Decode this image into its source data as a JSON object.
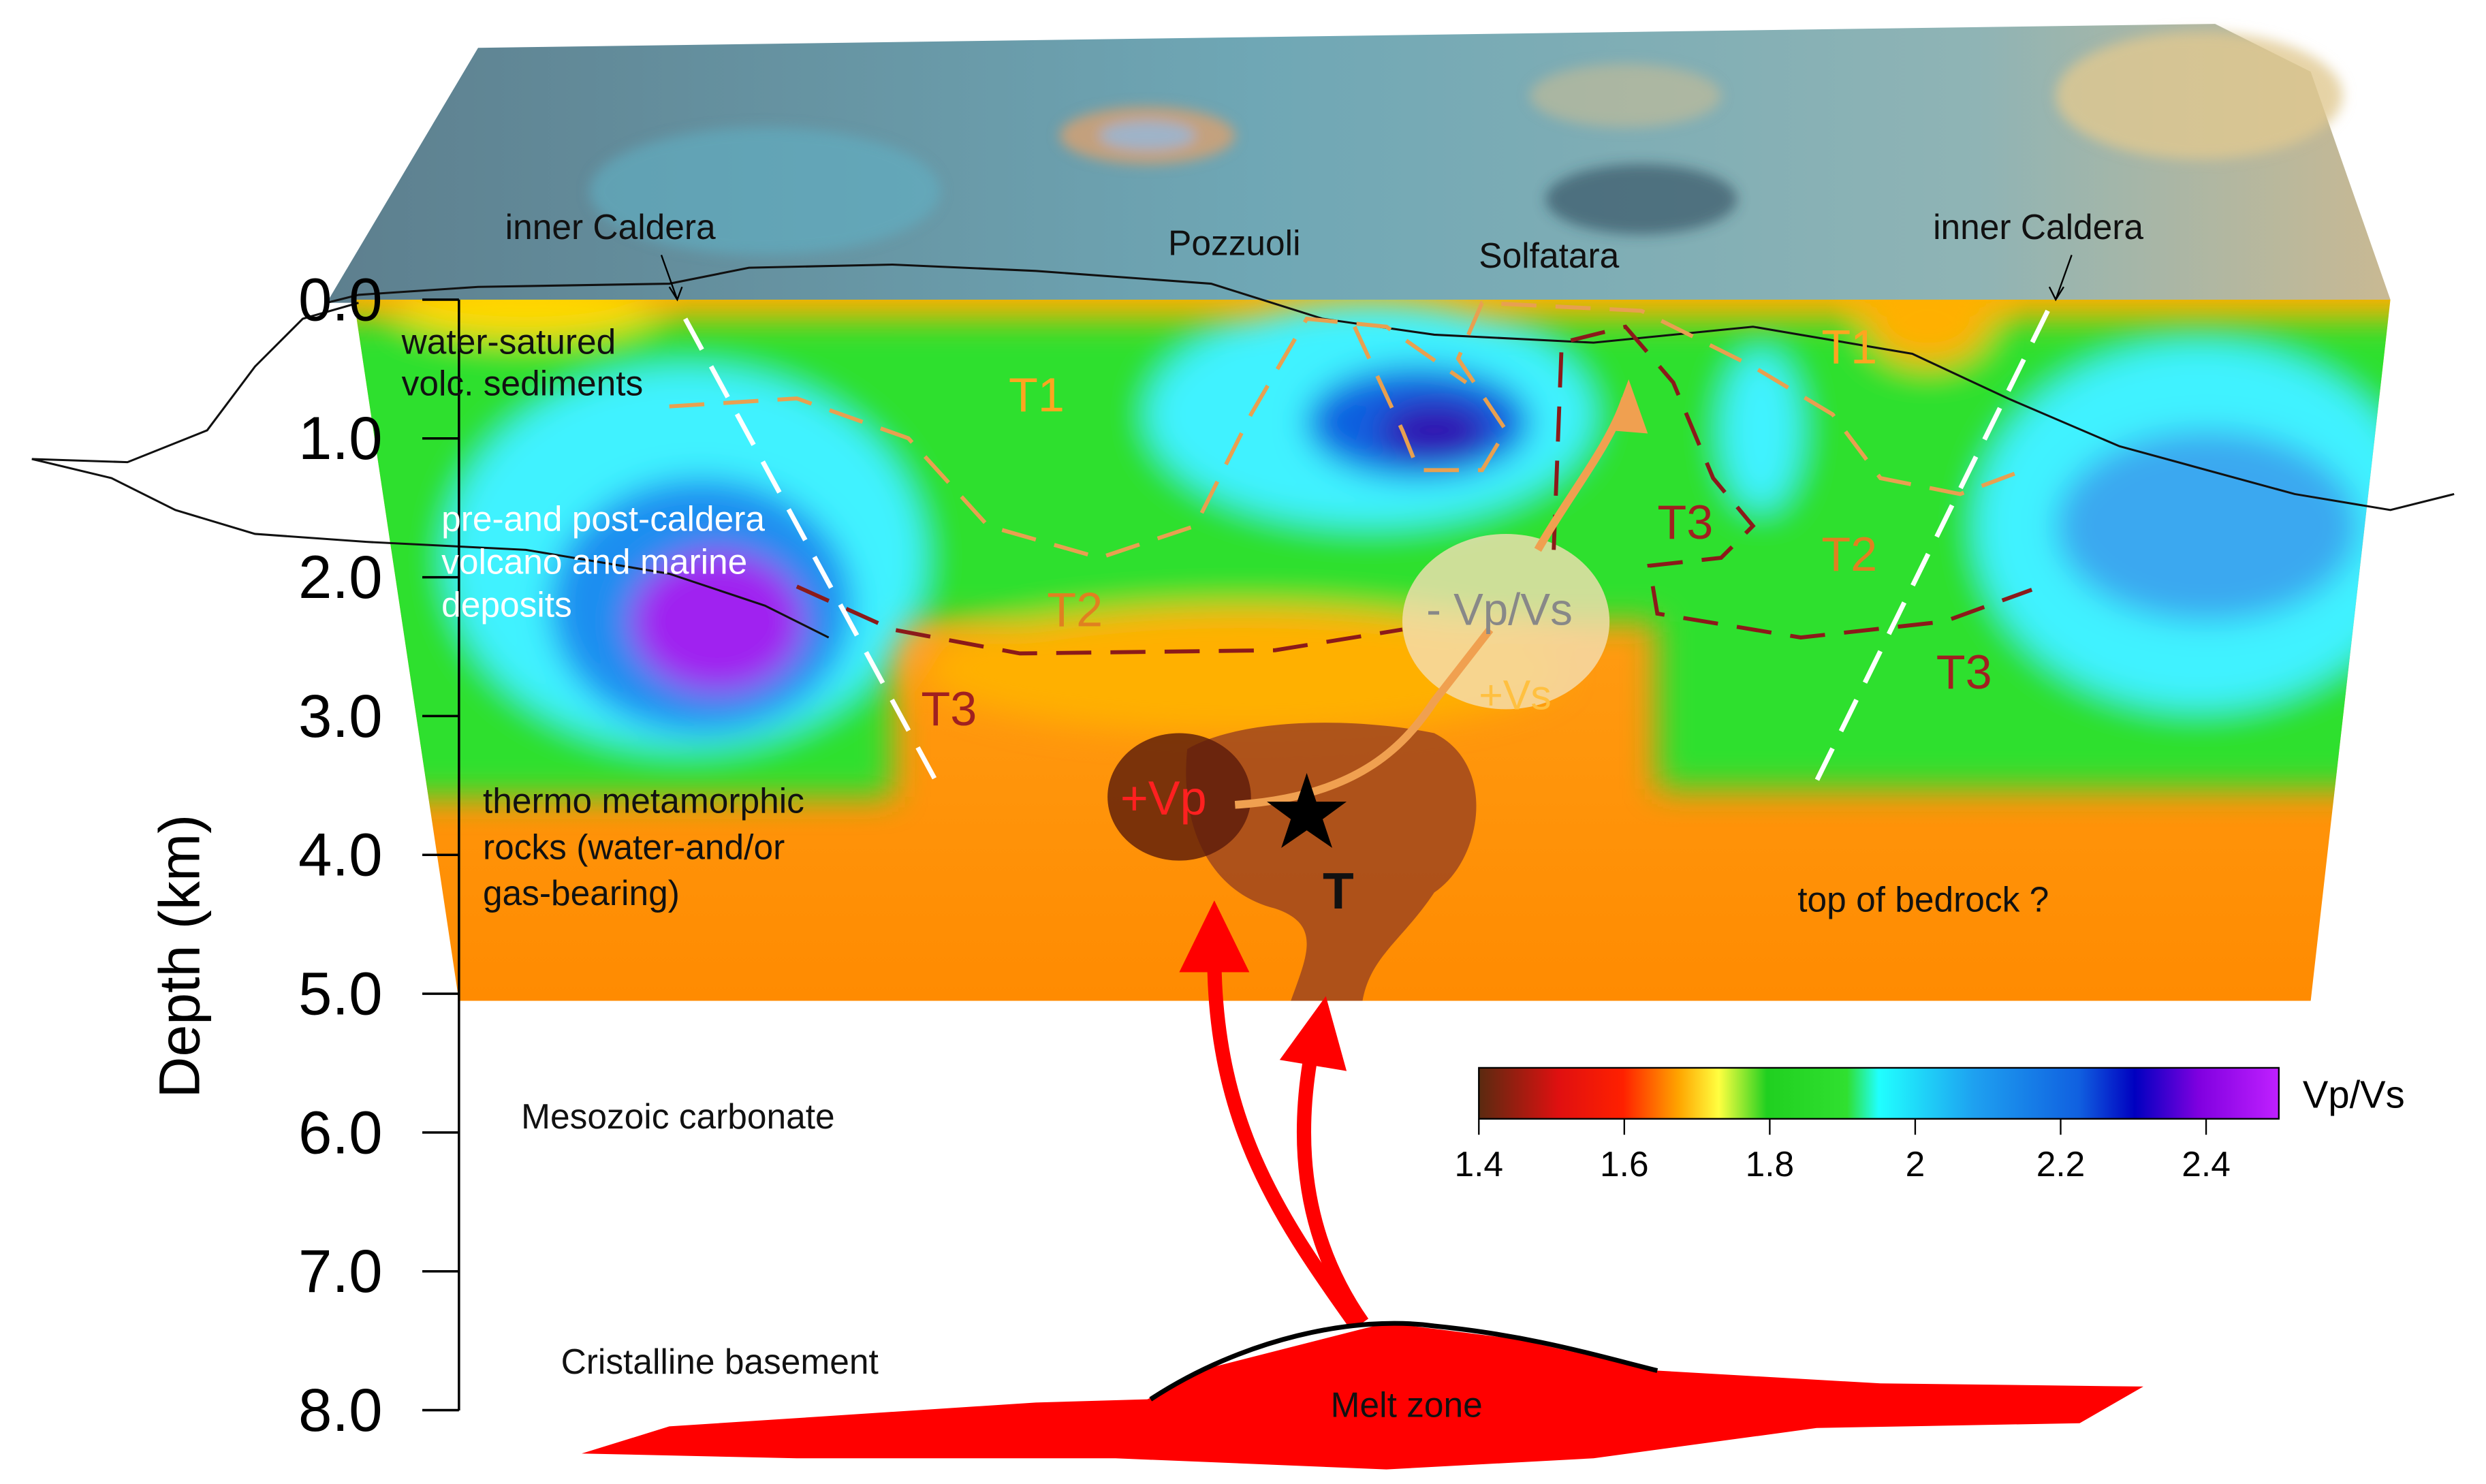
{
  "surface_labels": {
    "inner_caldera_left": "inner Caldera",
    "pozzuoli": "Pozzuoli",
    "solfatara": "Solfatara",
    "inner_caldera_right": "inner Caldera"
  },
  "units": {
    "water_sediments": [
      "water-satured",
      "volc. sediments"
    ],
    "caldera_deposits": [
      "pre-and post-caldera",
      "volcano and marine",
      "deposits"
    ],
    "thermo_rocks": [
      "thermo metamorphic",
      "rocks (water-and/or",
      "gas-bearing)"
    ],
    "bedrock": "top of bedrock ?",
    "mesozoic": "Mesozoic carbonate",
    "basement": "Cristalline basement",
    "melt": "Melt zone"
  },
  "zones": {
    "t1_left": "T1",
    "t1_right": "T1",
    "t2_left": "T2",
    "t2_right": "T2",
    "t3_left": "T3",
    "t3_mid": "T3",
    "t3_right": "T3"
  },
  "anomalies": {
    "neg_vpvs": "- Vp/Vs",
    "pos_vs": "+Vs",
    "pos_vp": "+Vp",
    "t": "T"
  },
  "depth_axis": {
    "label": "Depth (km)",
    "ticks": [
      {
        "value": 0,
        "label": "0.0"
      },
      {
        "value": 1,
        "label": "1.0"
      },
      {
        "value": 2,
        "label": "2.0"
      },
      {
        "value": 3,
        "label": "3.0"
      },
      {
        "value": 4,
        "label": "4.0"
      },
      {
        "value": 5,
        "label": "5.0"
      },
      {
        "value": 6,
        "label": "6.0"
      },
      {
        "value": 7,
        "label": "7.0"
      },
      {
        "value": 8,
        "label": "8.0"
      }
    ]
  },
  "colorbar": {
    "label": "Vp/Vs",
    "range": [
      1.4,
      2.5
    ],
    "ticks": [
      1.4,
      1.6,
      1.8,
      2.0,
      2.2,
      2.4
    ]
  }
}
